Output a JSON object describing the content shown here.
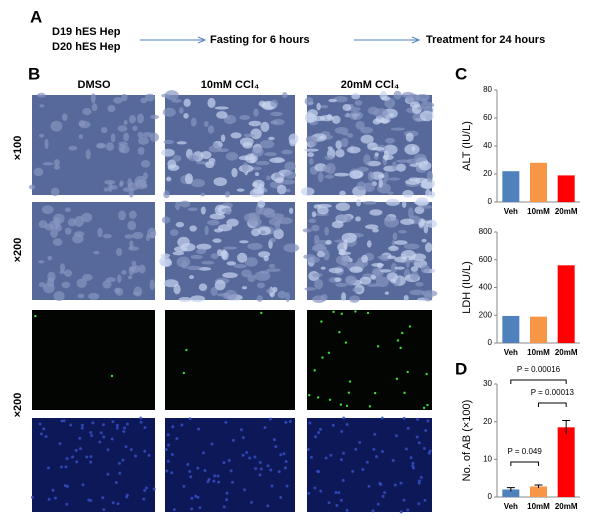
{
  "panels": {
    "a": "A",
    "b": "B",
    "c": "C",
    "d": "D"
  },
  "flow": {
    "cells": [
      "D19 hES Hep",
      "D20 hES Hep"
    ],
    "steps": [
      "Fasting for 6 hours",
      "Treatment for 24 hours"
    ]
  },
  "columns": [
    "DMSO",
    "10mM CCl₄",
    "20mM CCl₄"
  ],
  "rows": [
    "×100",
    "×200",
    "×200"
  ],
  "chart_data": [
    {
      "type": "bar",
      "y_label": "ALT (IU/L)",
      "categories": [
        "Veh",
        "10mM",
        "20mM"
      ],
      "values": [
        22,
        28,
        19
      ],
      "colors": [
        "#4f81bd",
        "#f79646",
        "#ff0000"
      ],
      "ylim": [
        0,
        80
      ],
      "yticks": [
        0,
        20,
        40,
        60,
        80
      ]
    },
    {
      "type": "bar",
      "y_label": "LDH (IU/L)",
      "categories": [
        "Veh",
        "10mM",
        "20mM"
      ],
      "values": [
        195,
        190,
        560
      ],
      "colors": [
        "#4f81bd",
        "#f79646",
        "#ff0000"
      ],
      "ylim": [
        0,
        800
      ],
      "yticks": [
        0,
        200,
        400,
        600,
        800
      ]
    },
    {
      "type": "bar",
      "y_label": "No. of AB (×100)",
      "categories": [
        "Veh",
        "10mM",
        "20mM"
      ],
      "values": [
        2,
        2.8,
        18.5
      ],
      "errors": [
        0.5,
        0.4,
        1.8
      ],
      "colors": [
        "#4f81bd",
        "#f79646",
        "#ff0000"
      ],
      "ylim": [
        0,
        30
      ],
      "yticks": [
        0,
        10,
        20,
        30
      ],
      "annotations": [
        "P = 0.049",
        "P = 0.00013",
        "P = 0.00016"
      ]
    }
  ]
}
